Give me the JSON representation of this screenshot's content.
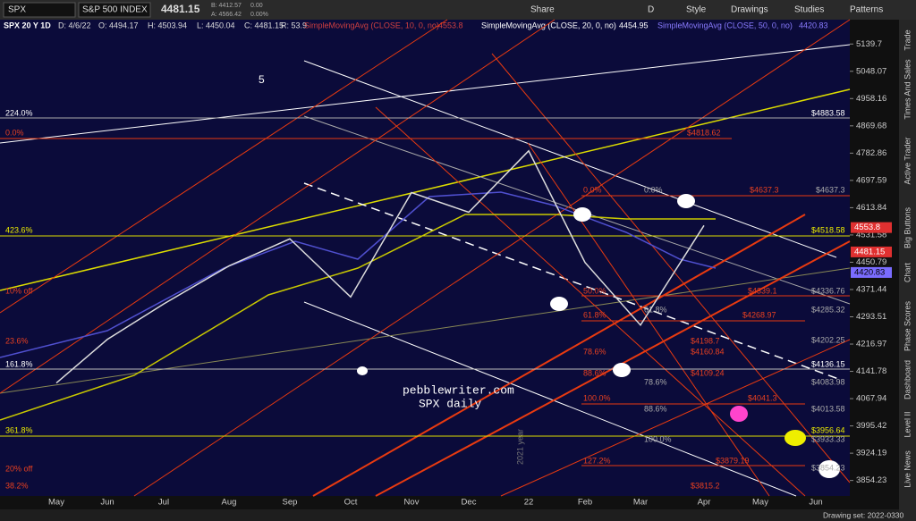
{
  "toolbar": {
    "symbol": "SPX",
    "name": "S&P 500 INDEX",
    "last": "4481.15",
    "bid": "B: 4412.57",
    "ask": "A: 4566.42",
    "change": "0.00",
    "change_pct": "0.00%",
    "buttons": [
      "Share",
      "Style",
      "Drawings",
      "Studies",
      "Patterns"
    ],
    "period": "D"
  },
  "info": {
    "chart": "SPX 20 Y 1D",
    "date": "D: 4/6/22",
    "open": "O: 4494.17",
    "high": "H: 4503.94",
    "low": "L: 4450.04",
    "close": "C: 4481.15",
    "range": "R: 53.9",
    "studies": [
      {
        "name": "SimpleMovingAvg (CLOSE, 10, 0, no)",
        "value": "4553.8"
      },
      {
        "name": "SimpleMovingAvg (CLOSE, 20, 0, no)",
        "value": "4454.95"
      },
      {
        "name": "SimpleMovingAvg (CLOSE, 50, 0, no)",
        "value": "4420.83"
      }
    ]
  },
  "chart_data": {
    "type": "line",
    "log_scale": true,
    "color": "#dddddd",
    "categories": [
      "May",
      "Jun",
      "Jul",
      "Aug",
      "Sep",
      "Oct",
      "Nov",
      "Dec",
      "22",
      "Feb",
      "Mar",
      "Apr",
      "May",
      "Jun"
    ],
    "values": [
      4110,
      4230,
      4330,
      4440,
      4520,
      4350,
      4660,
      4600,
      4790,
      4450,
      4270,
      4560,
      null,
      null
    ],
    "ylim": [
      3815,
      5180
    ],
    "yticks": [
      5139.7,
      5048.07,
      4958.16,
      4869.68,
      4782.86,
      4697.59,
      4613.84,
      4531.58,
      4450.79,
      4371.44,
      4293.51,
      4216.97,
      4141.78,
      4067.94,
      3995.42,
      3924.19,
      3854.23
    ],
    "price_tags": [
      "4553.8",
      "4481.15",
      "4420.83"
    ]
  },
  "levels": {
    "left": [
      "224.0%",
      "0.0%",
      "423.6%",
      "10% off",
      "23.6%",
      "161.8%",
      "361.8%",
      "20% off",
      "38.2%"
    ],
    "right": [
      "$4883.58",
      "$4818.62",
      "$4518.58",
      "$4136.15",
      "$3956.64"
    ],
    "fib_pct": [
      "0.0%",
      "50.0%",
      "61.8%",
      "78.6%",
      "88.6%",
      "100.0%",
      "127.2%"
    ],
    "fib_price": [
      "$4637.3",
      "$4339.1",
      "$4268.97",
      "$4198.7",
      "$4160.84",
      "$4109.24",
      "$4041.3",
      "$3879.19",
      "$3815.2"
    ],
    "gray": [
      "$4637.3",
      "$4336.76",
      "$4285.32",
      "$4202.25",
      "$4083.98",
      "$4013.58",
      "$3933.33",
      "$3854.23"
    ],
    "gray_pct": [
      "0.0%",
      "78.6%",
      "88.6%",
      "100.0%",
      "61.8%"
    ]
  },
  "annotations": {
    "wave": "5",
    "site": "pebblewriter.com",
    "caption": "SPX daily",
    "year": "2021 year"
  },
  "sidebar": [
    "Trade",
    "Times And Sales",
    "Active Trader",
    "Big Buttons",
    "Chart",
    "Phase Scores",
    "Dashboard",
    "Level II",
    "Live News"
  ],
  "status": "Drawing set: 2022-0330"
}
